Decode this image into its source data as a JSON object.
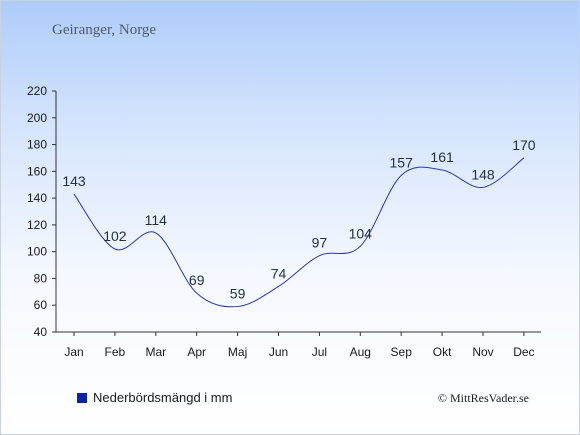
{
  "title": "Geiranger, Norge",
  "legend_label": "Nederbördsmängd i mm",
  "copyright": "© MittResVader.se",
  "colors": {
    "line": "#2b37a8",
    "legend": "#0a22a8",
    "axis": "#333333"
  },
  "chart_data": {
    "type": "line",
    "categories": [
      "Jan",
      "Feb",
      "Mar",
      "Apr",
      "Maj",
      "Jun",
      "Jul",
      "Aug",
      "Sep",
      "Okt",
      "Nov",
      "Dec"
    ],
    "series": [
      {
        "name": "Nederbördsmängd i mm",
        "values": [
          143,
          102,
          114,
          69,
          59,
          74,
          97,
          104,
          157,
          161,
          148,
          170
        ]
      }
    ],
    "ylim": [
      40,
      220
    ],
    "yticks": [
      40,
      60,
      80,
      100,
      120,
      140,
      160,
      180,
      200,
      220
    ],
    "grid": false,
    "legend": "bottom-left"
  }
}
